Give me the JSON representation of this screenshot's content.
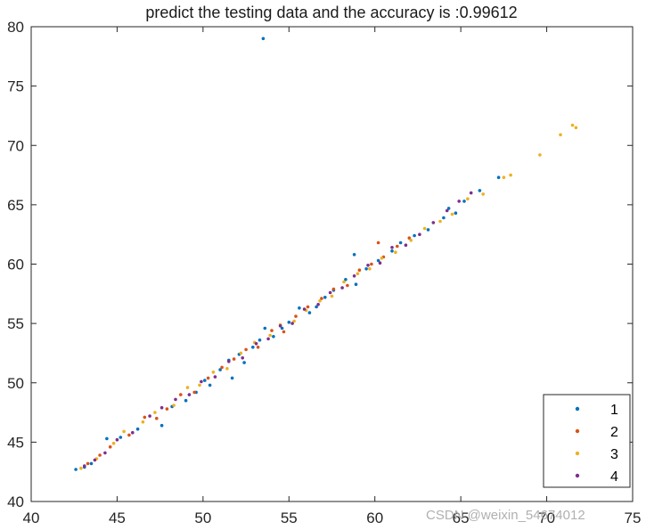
{
  "chart_data": {
    "type": "scatter",
    "title": "predict the testing data and the accuracy is :0.99612",
    "xlabel": "",
    "ylabel": "",
    "xlim": [
      40,
      75
    ],
    "ylim": [
      40,
      80
    ],
    "xticks": [
      "40",
      "45",
      "50",
      "55",
      "60",
      "65",
      "70",
      "75"
    ],
    "yticks": [
      "40",
      "45",
      "50",
      "55",
      "60",
      "65",
      "70",
      "75",
      "80"
    ],
    "grid": false,
    "legend_position": "bottom-right",
    "series": [
      {
        "name": "1",
        "color": "#0072BD",
        "points": [
          [
            42.6,
            42.7
          ],
          [
            43.1,
            42.9
          ],
          [
            43.5,
            43.2
          ],
          [
            44.4,
            45.3
          ],
          [
            45.2,
            45.4
          ],
          [
            46.2,
            46.1
          ],
          [
            47.6,
            46.4
          ],
          [
            48.2,
            48.0
          ],
          [
            49.0,
            48.5
          ],
          [
            49.6,
            49.2
          ],
          [
            50.1,
            50.2
          ],
          [
            50.4,
            49.8
          ],
          [
            51.0,
            51.1
          ],
          [
            51.5,
            51.9
          ],
          [
            51.7,
            50.4
          ],
          [
            52.1,
            52.4
          ],
          [
            52.4,
            51.7
          ],
          [
            52.9,
            53.0
          ],
          [
            53.3,
            53.6
          ],
          [
            53.5,
            79.0
          ],
          [
            53.6,
            54.6
          ],
          [
            54.1,
            53.9
          ],
          [
            54.6,
            54.6
          ],
          [
            55.0,
            55.1
          ],
          [
            55.6,
            56.3
          ],
          [
            56.2,
            55.9
          ],
          [
            56.6,
            56.4
          ],
          [
            57.1,
            57.2
          ],
          [
            57.6,
            57.8
          ],
          [
            58.3,
            58.7
          ],
          [
            58.9,
            58.3
          ],
          [
            58.8,
            60.8
          ],
          [
            59.5,
            59.6
          ],
          [
            60.2,
            60.3
          ],
          [
            61.0,
            61.1
          ],
          [
            61.5,
            61.8
          ],
          [
            62.3,
            62.4
          ],
          [
            63.1,
            62.9
          ],
          [
            64.0,
            63.9
          ],
          [
            64.3,
            64.7
          ],
          [
            64.7,
            64.3
          ],
          [
            65.2,
            65.3
          ],
          [
            66.1,
            66.2
          ],
          [
            67.2,
            67.3
          ]
        ]
      },
      {
        "name": "2",
        "color": "#D95319",
        "points": [
          [
            43.3,
            43.2
          ],
          [
            44.0,
            43.9
          ],
          [
            44.6,
            44.6
          ],
          [
            45.7,
            45.6
          ],
          [
            46.6,
            47.1
          ],
          [
            47.3,
            47.0
          ],
          [
            47.9,
            47.8
          ],
          [
            48.7,
            49.0
          ],
          [
            49.5,
            49.2
          ],
          [
            50.3,
            50.4
          ],
          [
            51.1,
            51.3
          ],
          [
            51.8,
            52.0
          ],
          [
            52.5,
            52.8
          ],
          [
            53.2,
            53.0
          ],
          [
            54.0,
            54.4
          ],
          [
            54.7,
            54.3
          ],
          [
            55.4,
            55.6
          ],
          [
            56.1,
            56.4
          ],
          [
            56.9,
            57.1
          ],
          [
            57.6,
            57.9
          ],
          [
            58.4,
            58.2
          ],
          [
            59.1,
            59.5
          ],
          [
            59.8,
            60.0
          ],
          [
            60.2,
            61.8
          ],
          [
            60.5,
            60.6
          ],
          [
            61.3,
            61.5
          ],
          [
            62.0,
            62.2
          ]
        ]
      },
      {
        "name": "3",
        "color": "#EDB120",
        "points": [
          [
            42.9,
            42.8
          ],
          [
            43.8,
            43.6
          ],
          [
            44.8,
            44.9
          ],
          [
            45.4,
            45.9
          ],
          [
            46.5,
            46.7
          ],
          [
            47.2,
            47.5
          ],
          [
            48.3,
            48.1
          ],
          [
            49.1,
            49.6
          ],
          [
            49.8,
            49.8
          ],
          [
            50.6,
            50.9
          ],
          [
            51.4,
            51.2
          ],
          [
            52.2,
            52.5
          ],
          [
            53.0,
            53.4
          ],
          [
            53.9,
            54.0
          ],
          [
            54.5,
            54.9
          ],
          [
            55.3,
            55.2
          ],
          [
            56.0,
            56.1
          ],
          [
            56.8,
            56.9
          ],
          [
            57.5,
            57.3
          ],
          [
            58.2,
            58.5
          ],
          [
            59.0,
            59.2
          ],
          [
            59.7,
            59.6
          ],
          [
            60.4,
            60.5
          ],
          [
            61.2,
            61.0
          ],
          [
            62.1,
            62.0
          ],
          [
            62.9,
            63.0
          ],
          [
            63.8,
            63.6
          ],
          [
            64.5,
            64.2
          ],
          [
            65.4,
            65.5
          ],
          [
            66.3,
            65.9
          ],
          [
            67.5,
            67.3
          ],
          [
            67.9,
            67.5
          ],
          [
            69.6,
            69.2
          ],
          [
            70.8,
            70.9
          ],
          [
            71.5,
            71.7
          ],
          [
            71.7,
            71.5
          ]
        ]
      },
      {
        "name": "4",
        "color": "#7E2F8E",
        "points": [
          [
            43.1,
            43.0
          ],
          [
            43.7,
            43.5
          ],
          [
            44.3,
            44.1
          ],
          [
            45.0,
            45.2
          ],
          [
            45.9,
            45.8
          ],
          [
            46.9,
            47.2
          ],
          [
            47.6,
            47.9
          ],
          [
            48.4,
            48.6
          ],
          [
            49.2,
            49.0
          ],
          [
            49.9,
            50.1
          ],
          [
            50.7,
            50.5
          ],
          [
            51.5,
            51.8
          ],
          [
            52.3,
            52.1
          ],
          [
            53.1,
            53.3
          ],
          [
            53.8,
            53.7
          ],
          [
            54.5,
            54.8
          ],
          [
            55.2,
            55.0
          ],
          [
            55.9,
            56.2
          ],
          [
            56.7,
            56.6
          ],
          [
            57.4,
            57.6
          ],
          [
            58.1,
            58.0
          ],
          [
            58.8,
            59.0
          ],
          [
            59.6,
            59.9
          ],
          [
            60.3,
            60.1
          ],
          [
            61.0,
            61.4
          ],
          [
            61.8,
            61.6
          ],
          [
            62.6,
            62.5
          ],
          [
            63.4,
            63.5
          ],
          [
            64.2,
            64.5
          ],
          [
            64.9,
            65.3
          ],
          [
            65.6,
            66.0
          ]
        ]
      }
    ],
    "watermark": "CSDN @weixin_54674012"
  }
}
